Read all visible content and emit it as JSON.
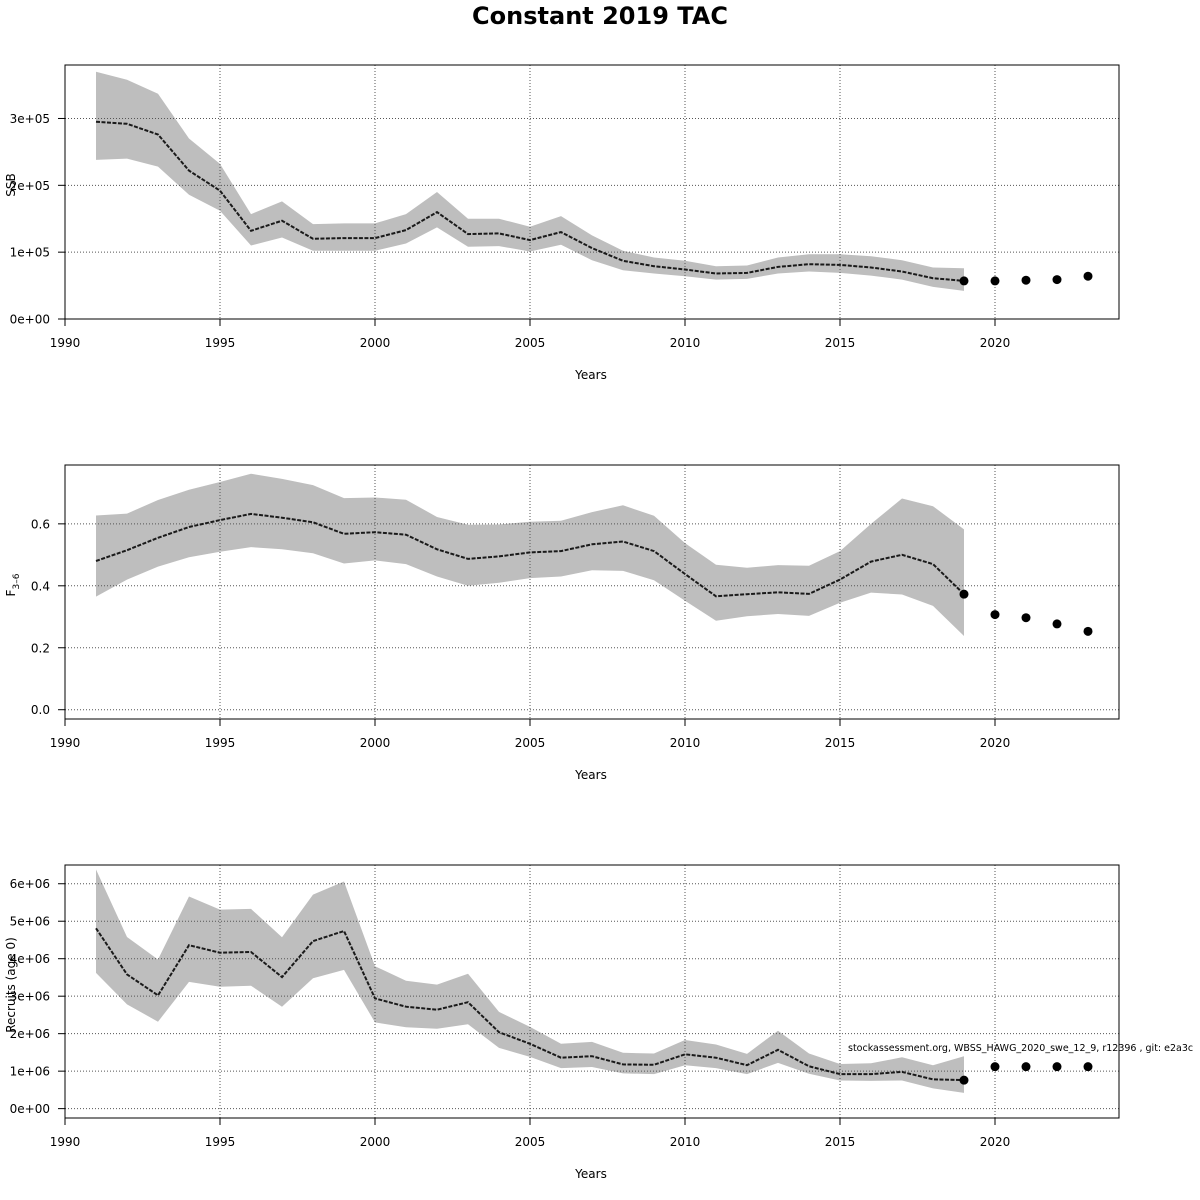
{
  "title": "Constant 2019 TAC",
  "credit": "stockassessment.org, WBSS_HAWG_2020_swe_12_9, r12396 , git: e2a3c",
  "colors": {
    "band": "#bebebe",
    "line": "#1a1a1a",
    "point": "#000000",
    "grid": "#555555"
  },
  "chart_data": [
    {
      "type": "line",
      "title": "",
      "xlabel": "Years",
      "ylabel": "SSB",
      "xlim": [
        1990,
        2024
      ],
      "ylim": [
        0,
        380000
      ],
      "xticks": [
        1990,
        1995,
        2000,
        2005,
        2010,
        2015,
        2020
      ],
      "xtick_labels": [
        "1990",
        "1995",
        "2000",
        "2005",
        "2010",
        "2015",
        "2020"
      ],
      "yticks": [
        0,
        100000,
        200000,
        300000
      ],
      "ytick_labels": [
        "0e+00",
        "1e+05",
        "2e+05",
        "3e+05"
      ],
      "grid": true,
      "estimate": {
        "x": [
          1991,
          1992,
          1993,
          1994,
          1995,
          1996,
          1997,
          1998,
          1999,
          2000,
          2001,
          2002,
          2003,
          2004,
          2005,
          2006,
          2007,
          2008,
          2009,
          2010,
          2011,
          2012,
          2013,
          2014,
          2015,
          2016,
          2017,
          2018,
          2019
        ],
        "y": [
          295000,
          292000,
          276000,
          222000,
          192000,
          132000,
          147000,
          120000,
          121000,
          121000,
          133000,
          160000,
          127000,
          128000,
          118000,
          130000,
          106000,
          87000,
          79000,
          74000,
          68000,
          69000,
          78000,
          82000,
          81000,
          77000,
          71000,
          61000,
          57000
        ],
        "lower": [
          238000,
          240000,
          228000,
          186000,
          162000,
          110000,
          122000,
          102000,
          102000,
          102000,
          113000,
          137000,
          108000,
          109000,
          101000,
          111000,
          88000,
          73000,
          68000,
          64000,
          59000,
          60000,
          68000,
          71000,
          69000,
          65000,
          59000,
          48000,
          42000
        ],
        "upper": [
          370000,
          358000,
          337000,
          270000,
          232000,
          157000,
          176000,
          142000,
          143000,
          143000,
          157000,
          190000,
          150000,
          150000,
          138000,
          154000,
          125000,
          102000,
          92000,
          87000,
          79000,
          80000,
          92000,
          97000,
          97000,
          94000,
          88000,
          77000,
          76000
        ]
      },
      "forecast": {
        "x": [
          2019,
          2020,
          2021,
          2022,
          2023
        ],
        "y": [
          57000,
          57000,
          58000,
          59000,
          64000
        ]
      }
    },
    {
      "type": "line",
      "title": "",
      "xlabel": "Years",
      "ylabel": "F3–6",
      "xlim": [
        1990,
        2024
      ],
      "ylim": [
        -0.03,
        0.79
      ],
      "xticks": [
        1990,
        1995,
        2000,
        2005,
        2010,
        2015,
        2020
      ],
      "xtick_labels": [
        "1990",
        "1995",
        "2000",
        "2005",
        "2010",
        "2015",
        "2020"
      ],
      "yticks": [
        0,
        0.2,
        0.4,
        0.6
      ],
      "ytick_labels": [
        "0.0",
        "0.2",
        "0.4",
        "0.6"
      ],
      "grid": true,
      "estimate": {
        "x": [
          1991,
          1992,
          1993,
          1994,
          1995,
          1996,
          1997,
          1998,
          1999,
          2000,
          2001,
          2002,
          2003,
          2004,
          2005,
          2006,
          2007,
          2008,
          2009,
          2010,
          2011,
          2012,
          2013,
          2014,
          2015,
          2016,
          2017,
          2018,
          2019
        ],
        "y": [
          0.48,
          0.515,
          0.555,
          0.59,
          0.612,
          0.632,
          0.62,
          0.605,
          0.568,
          0.573,
          0.565,
          0.518,
          0.487,
          0.495,
          0.508,
          0.512,
          0.534,
          0.543,
          0.512,
          0.438,
          0.366,
          0.373,
          0.379,
          0.374,
          0.42,
          0.478,
          0.5,
          0.47,
          0.373
        ],
        "lower": [
          0.365,
          0.42,
          0.462,
          0.492,
          0.51,
          0.525,
          0.518,
          0.505,
          0.472,
          0.482,
          0.47,
          0.43,
          0.4,
          0.41,
          0.425,
          0.43,
          0.45,
          0.448,
          0.418,
          0.352,
          0.287,
          0.302,
          0.309,
          0.303,
          0.345,
          0.378,
          0.372,
          0.335,
          0.238
        ],
        "upper": [
          0.627,
          0.633,
          0.677,
          0.71,
          0.735,
          0.762,
          0.745,
          0.725,
          0.683,
          0.685,
          0.678,
          0.622,
          0.597,
          0.598,
          0.607,
          0.61,
          0.638,
          0.66,
          0.626,
          0.538,
          0.468,
          0.458,
          0.467,
          0.465,
          0.512,
          0.6,
          0.682,
          0.657,
          0.582
        ]
      },
      "forecast": {
        "x": [
          2019,
          2020,
          2021,
          2022,
          2023
        ],
        "y": [
          0.373,
          0.307,
          0.297,
          0.277,
          0.253
        ]
      }
    },
    {
      "type": "line",
      "title": "",
      "xlabel": "Years",
      "ylabel": "Recruits (age 0)",
      "xlim": [
        1990,
        2024
      ],
      "ylim": [
        -250000,
        6500000
      ],
      "xticks": [
        1990,
        1995,
        2000,
        2005,
        2010,
        2015,
        2020
      ],
      "xtick_labels": [
        "1990",
        "1995",
        "2000",
        "2005",
        "2010",
        "2015",
        "2020"
      ],
      "yticks": [
        0,
        1000000,
        2000000,
        3000000,
        4000000,
        5000000,
        6000000
      ],
      "ytick_labels": [
        "0e+00",
        "1e+06",
        "2e+06",
        "3e+06",
        "4e+06",
        "5e+06",
        "6e+06"
      ],
      "grid": true,
      "estimate": {
        "x": [
          1991,
          1992,
          1993,
          1994,
          1995,
          1996,
          1997,
          1998,
          1999,
          2000,
          2001,
          2002,
          2003,
          2004,
          2005,
          2006,
          2007,
          2008,
          2009,
          2010,
          2011,
          2012,
          2013,
          2014,
          2015,
          2016,
          2017,
          2018,
          2019
        ],
        "y": [
          4810000,
          3580000,
          3020000,
          4360000,
          4160000,
          4180000,
          3510000,
          4470000,
          4740000,
          2940000,
          2720000,
          2640000,
          2840000,
          2040000,
          1730000,
          1360000,
          1400000,
          1180000,
          1170000,
          1450000,
          1360000,
          1160000,
          1570000,
          1130000,
          920000,
          920000,
          980000,
          780000,
          760000
        ],
        "lower": [
          3620000,
          2780000,
          2320000,
          3380000,
          3250000,
          3280000,
          2720000,
          3480000,
          3700000,
          2300000,
          2170000,
          2130000,
          2250000,
          1620000,
          1380000,
          1080000,
          1110000,
          940000,
          920000,
          1160000,
          1080000,
          920000,
          1220000,
          930000,
          750000,
          740000,
          750000,
          540000,
          420000
        ],
        "upper": [
          6380000,
          4580000,
          3980000,
          5660000,
          5310000,
          5330000,
          4570000,
          5710000,
          6060000,
          3800000,
          3410000,
          3310000,
          3600000,
          2580000,
          2180000,
          1730000,
          1780000,
          1490000,
          1470000,
          1830000,
          1710000,
          1460000,
          2080000,
          1470000,
          1190000,
          1210000,
          1370000,
          1160000,
          1400000
        ]
      },
      "forecast": {
        "x": [
          2019,
          2020,
          2021,
          2022,
          2023
        ],
        "y": [
          760000,
          1120000,
          1120000,
          1120000,
          1120000
        ]
      }
    }
  ]
}
